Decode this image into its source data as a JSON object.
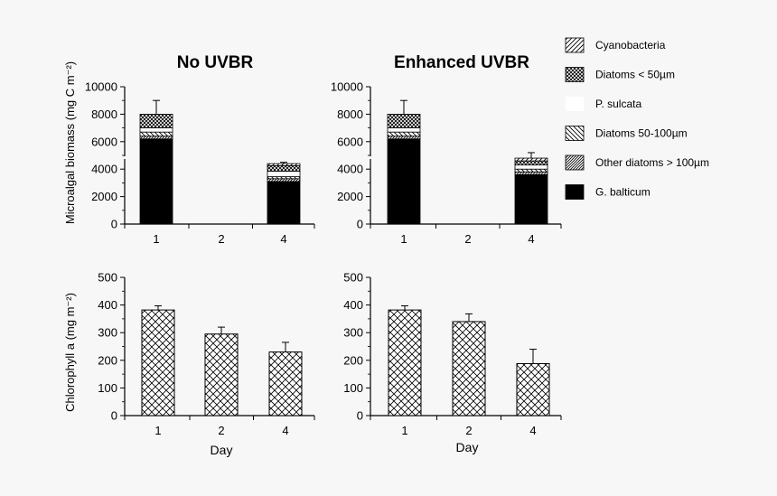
{
  "colors": {
    "background": "#f7f7f7",
    "ink": "#000000"
  },
  "chart_data": [
    {
      "id": "biomass-no-uvbr",
      "type": "bar",
      "stacked": true,
      "title": "No UVBR",
      "ylabel": "Microalgal biomass (mg C m⁻²)",
      "xlabel": "",
      "categories": [
        "1",
        "2",
        "4"
      ],
      "ylim": [
        0,
        10000
      ],
      "yticks": [
        "0",
        "2000",
        "4000",
        "6000",
        "8000",
        "10000"
      ],
      "series": [
        {
          "name": "G. balticum",
          "pattern": "solid",
          "values": [
            6200,
            null,
            3100
          ]
        },
        {
          "name": "Other diatoms > 100µm",
          "pattern": "fine-diag",
          "values": [
            200,
            null,
            200
          ]
        },
        {
          "name": "Diatoms 50-100µm",
          "pattern": "back-diag",
          "values": [
            300,
            null,
            150
          ]
        },
        {
          "name": "P. sulcata",
          "pattern": "white",
          "values": [
            300,
            null,
            400
          ]
        },
        {
          "name": "Diatoms < 50µm",
          "pattern": "cross-dense",
          "values": [
            1000,
            null,
            400
          ]
        },
        {
          "name": "Cyanobacteria",
          "pattern": "diag",
          "values": [
            0,
            null,
            150
          ]
        }
      ],
      "totals": [
        8000,
        null,
        4400
      ],
      "errors": [
        1000,
        null,
        100
      ]
    },
    {
      "id": "biomass-enhanced-uvbr",
      "type": "bar",
      "stacked": true,
      "title": "Enhanced UVBR",
      "ylabel": "",
      "xlabel": "",
      "categories": [
        "1",
        "2",
        "4"
      ],
      "ylim": [
        0,
        10000
      ],
      "yticks": [
        "0",
        "2000",
        "4000",
        "6000",
        "8000",
        "10000"
      ],
      "series": [
        {
          "name": "G. balticum",
          "pattern": "solid",
          "values": [
            6200,
            null,
            3600
          ]
        },
        {
          "name": "Other diatoms > 100µm",
          "pattern": "fine-diag",
          "values": [
            200,
            null,
            200
          ]
        },
        {
          "name": "Diatoms 50-100µm",
          "pattern": "back-diag",
          "values": [
            300,
            null,
            200
          ]
        },
        {
          "name": "P. sulcata",
          "pattern": "white",
          "values": [
            300,
            null,
            300
          ]
        },
        {
          "name": "Diatoms < 50µm",
          "pattern": "cross-dense",
          "values": [
            1000,
            null,
            300
          ]
        },
        {
          "name": "Cyanobacteria",
          "pattern": "diag",
          "values": [
            0,
            null,
            200
          ]
        }
      ],
      "totals": [
        8000,
        null,
        4800
      ],
      "errors": [
        1000,
        null,
        400
      ]
    },
    {
      "id": "chla-no-uvbr",
      "type": "bar",
      "title": "",
      "ylabel": "Chlorophyll a  (mg m⁻²)",
      "xlabel": "Day",
      "categories": [
        "1",
        "2",
        "4"
      ],
      "ylim": [
        0,
        500
      ],
      "yticks": [
        "0",
        "100",
        "200",
        "300",
        "400",
        "500"
      ],
      "values": [
        382,
        295,
        230
      ],
      "errors": [
        15,
        25,
        35
      ]
    },
    {
      "id": "chla-enhanced-uvbr",
      "type": "bar",
      "title": "",
      "ylabel": "",
      "xlabel": "Day",
      "categories": [
        "1",
        "2",
        "4"
      ],
      "ylim": [
        0,
        500
      ],
      "yticks": [
        "0",
        "100",
        "200",
        "300",
        "400",
        "500"
      ],
      "values": [
        382,
        340,
        188
      ],
      "errors": [
        15,
        28,
        52
      ]
    }
  ],
  "legend": {
    "position": "right",
    "items": [
      {
        "label": "Cyanobacteria",
        "pattern": "diag"
      },
      {
        "label": "Diatoms < 50µm",
        "pattern": "cross-dense"
      },
      {
        "label": "P. sulcata",
        "pattern": "white"
      },
      {
        "label": "Diatoms 50-100µm",
        "pattern": "back-diag"
      },
      {
        "label": "Other diatoms > 100µm",
        "pattern": "fine-diag"
      },
      {
        "label": "G. balticum",
        "pattern": "solid"
      }
    ]
  }
}
